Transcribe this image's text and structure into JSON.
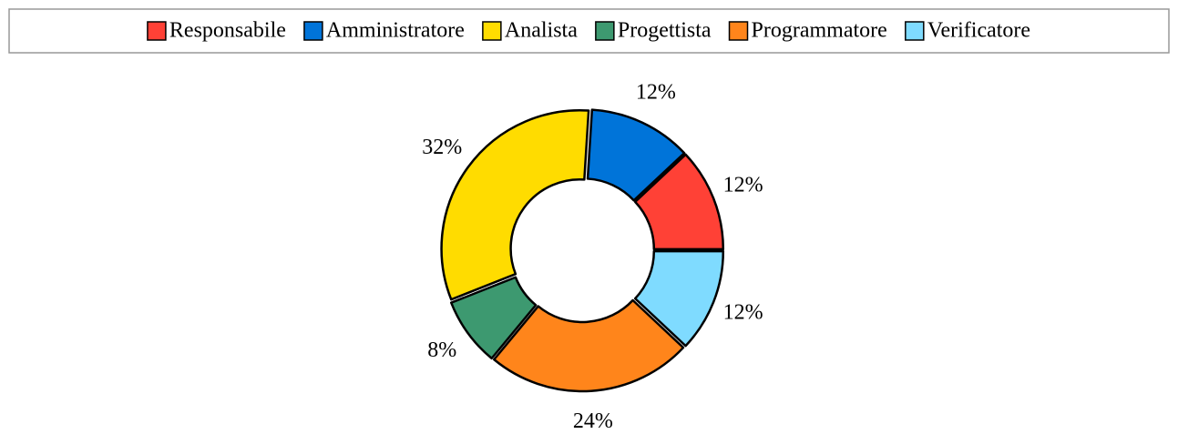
{
  "chart_data": {
    "type": "donut",
    "categories": [
      "Responsabile",
      "Amministratore",
      "Analista",
      "Progettista",
      "Programmatore",
      "Verificatore"
    ],
    "values": [
      12,
      12,
      32,
      8,
      24,
      12
    ],
    "value_labels": [
      "12%",
      "12%",
      "32%",
      "8%",
      "24%",
      "12%"
    ],
    "colors": [
      "#ff4136",
      "#0074d9",
      "#ffdc00",
      "#3d9970",
      "#ff851b",
      "#7fdbff"
    ],
    "legend": "top"
  }
}
